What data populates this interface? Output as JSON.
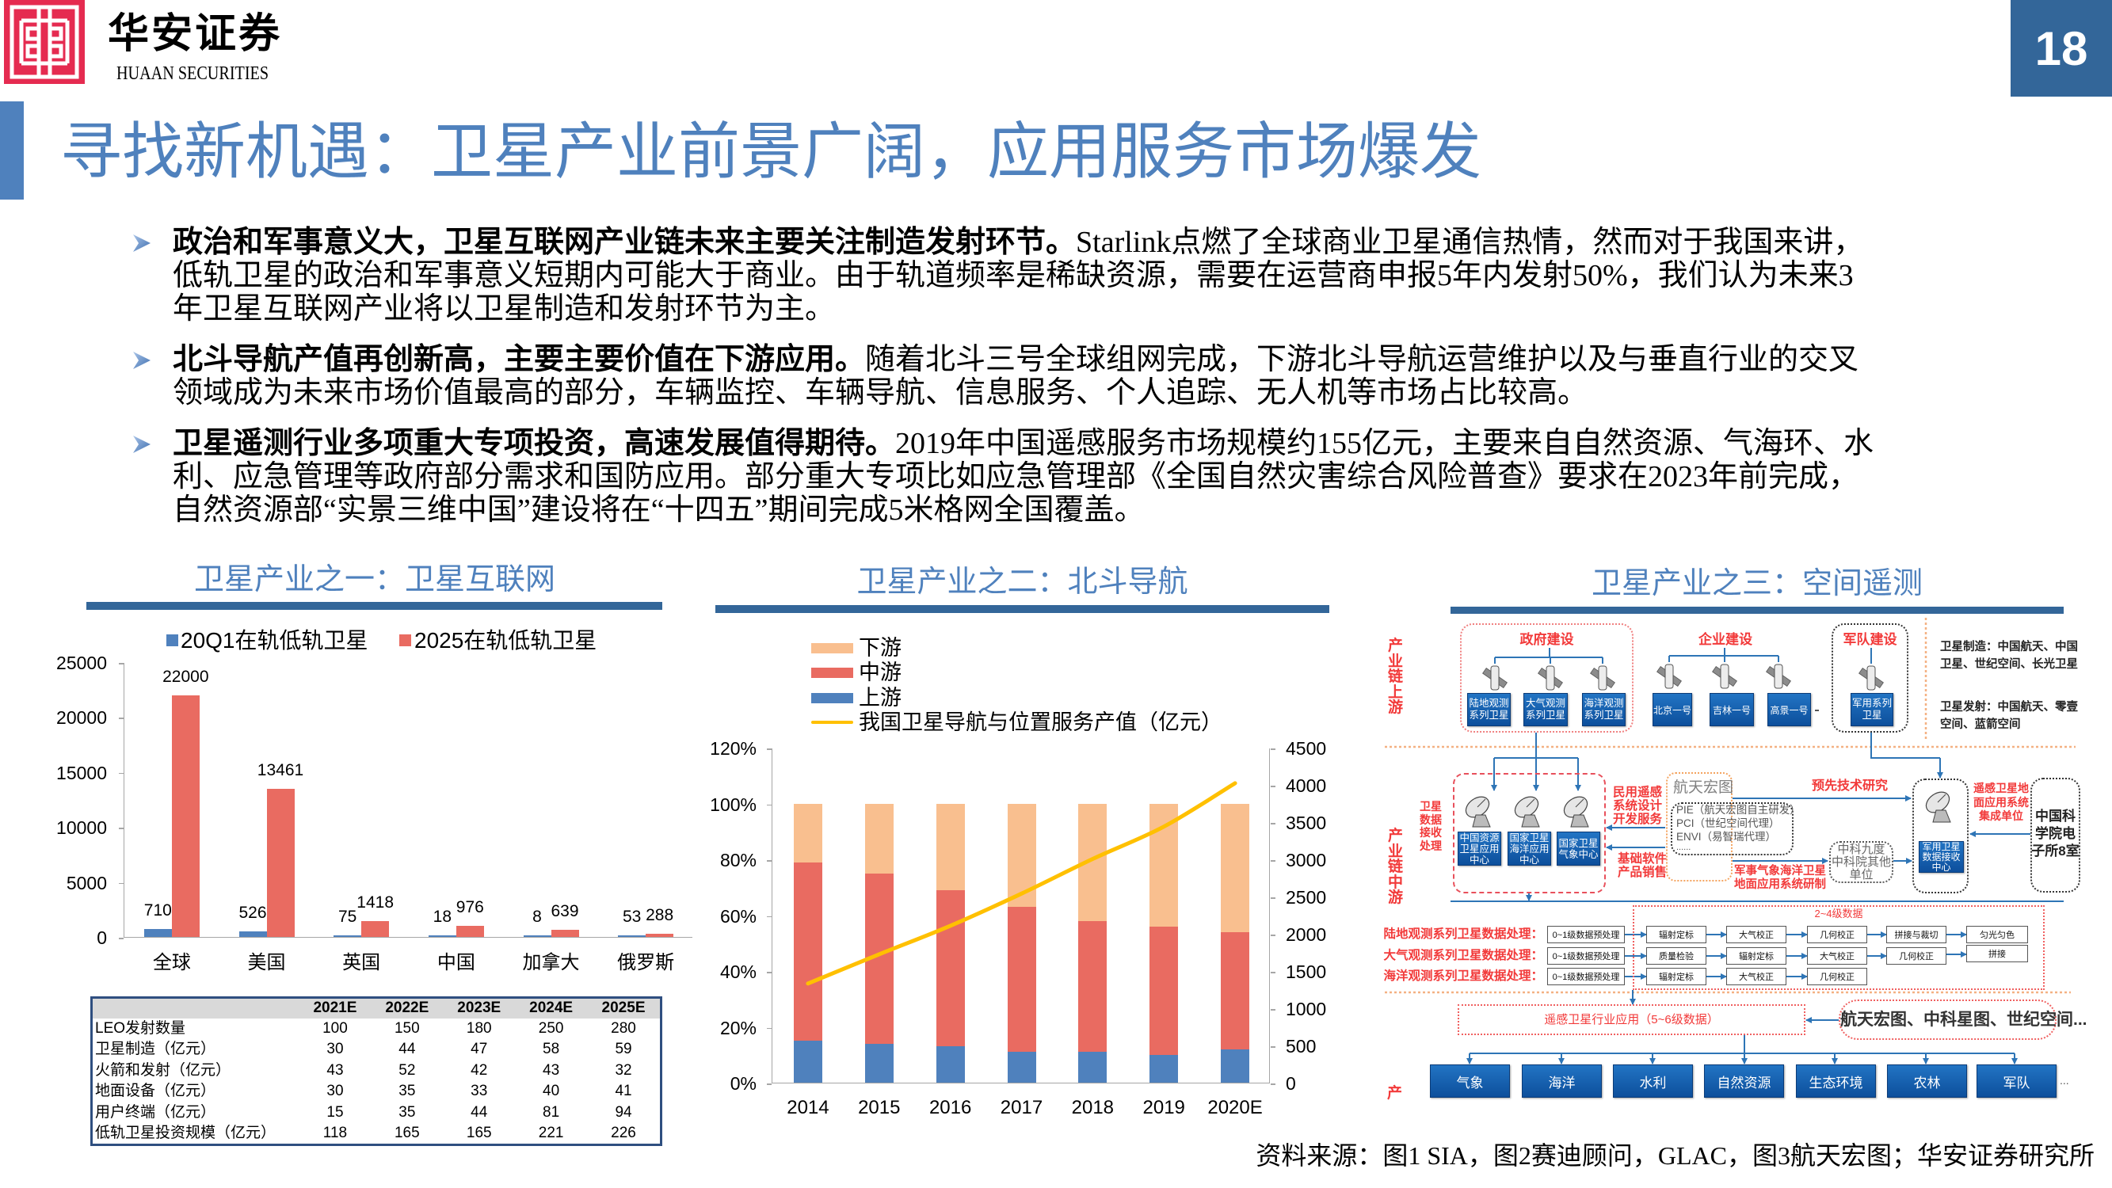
{
  "header": {
    "brand_cn": "华安证券",
    "brand_en": "HUAAN SECURITIES",
    "page_number": "18"
  },
  "title": "寻找新机遇：卫星产业前景广阔，应用服务市场爆发",
  "bullets": [
    {
      "lead": "政治和军事意义大，卫星互联网产业链未来主要关注制造发射环节。",
      "body": "Starlink点燃了全球商业卫星通信热情，然而对于我国来讲，低轨卫星的政治和军事意义短期内可能大于商业。由于轨道频率是稀缺资源，需要在运营商申报5年内发射50%，我们认为未来3年卫星互联网产业将以卫星制造和发射环节为主。"
    },
    {
      "lead": "北斗导航产值再创新高，主要主要价值在下游应用。",
      "body": "随着北斗三号全球组网完成，下游北斗导航运营维护以及与垂直行业的交叉领域成为未来市场价值最高的部分，车辆监控、车辆导航、信息服务、个人追踪、无人机等市场占比较高。"
    },
    {
      "lead": "卫星遥测行业多项重大专项投资，高速发展值得期待。",
      "body": "2019年中国遥感服务市场规模约155亿元，主要来自自然资源、气海环、水利、应急管理等政府部分需求和国防应用。部分重大专项比如应急管理部《全国自然灾害综合风险普查》要求在2023年前完成，自然资源部“实景三维中国”建设将在“十四五”期间完成5米格网全国覆盖。"
    }
  ],
  "panels": [
    {
      "title": "卫星产业之一：卫星互联网"
    },
    {
      "title": "卫星产业之二：北斗导航"
    },
    {
      "title": "卫星产业之三：空间遥测"
    }
  ],
  "chart_data": [
    {
      "type": "bar",
      "title": "卫星产业之一：卫星互联网",
      "categories": [
        "全球",
        "美国",
        "英国",
        "中国",
        "加拿大",
        "俄罗斯"
      ],
      "series": [
        {
          "name": "20Q1在轨低轨卫星",
          "values": [
            710,
            526,
            75,
            18,
            8,
            53
          ],
          "color": "#4f81bd"
        },
        {
          "name": "2025在轨低轨卫星",
          "values": [
            22000,
            13461,
            1418,
            976,
            639,
            288
          ],
          "color": "#e96b61"
        }
      ],
      "xlabel": "",
      "ylabel": "",
      "ylim": [
        0,
        25000
      ],
      "yticks": [
        25000,
        20000,
        15000,
        10000,
        5000,
        0
      ],
      "grid": false,
      "legend_position": "top",
      "data_labels": true
    },
    {
      "type": "bar",
      "stacked": true,
      "title": "卫星产业之二：北斗导航",
      "categories": [
        "2014",
        "2015",
        "2016",
        "2017",
        "2018",
        "2019",
        "2020E"
      ],
      "series": [
        {
          "name": "上游",
          "values": [
            15,
            14,
            13,
            11,
            11,
            10,
            12
          ],
          "color": "#4f81bd"
        },
        {
          "name": "中游",
          "values": [
            64,
            61,
            56,
            52,
            47,
            46,
            42
          ],
          "color": "#e96b61"
        },
        {
          "name": "下游",
          "values": [
            21,
            25,
            31,
            37,
            42,
            44,
            46
          ],
          "color": "#f9bf8f"
        }
      ],
      "line_series": {
        "name": "我国卫星导航与位置服务产值（亿元）",
        "values": [
          1343,
          1735,
          2118,
          2550,
          3016,
          3450,
          4033
        ],
        "color": "#ffc000",
        "axis": "right"
      },
      "ylim": [
        0,
        120
      ],
      "y2lim": [
        0,
        4500
      ],
      "yticks": [
        "120%",
        "100%",
        "80%",
        "60%",
        "40%",
        "20%",
        "0%"
      ],
      "y2ticks": [
        4500,
        4000,
        3500,
        3000,
        2500,
        2000,
        1500,
        1000,
        500,
        0
      ],
      "xlabel": "",
      "ylabel": "",
      "grid": false,
      "legend_position": "top-left"
    }
  ],
  "table": {
    "headers": [
      "",
      "2021E",
      "2022E",
      "2023E",
      "2024E",
      "2025E"
    ],
    "rows": [
      {
        "label": "LEO发射数量",
        "values": [
          "100",
          "150",
          "180",
          "250",
          "280"
        ]
      },
      {
        "label": "卫星制造（亿元）",
        "values": [
          "30",
          "44",
          "47",
          "58",
          "59"
        ]
      },
      {
        "label": "火箭和发射（亿元）",
        "values": [
          "43",
          "52",
          "42",
          "43",
          "32"
        ]
      },
      {
        "label": "地面设备（亿元）",
        "values": [
          "30",
          "35",
          "33",
          "40",
          "41"
        ]
      },
      {
        "label": "用户终端（亿元）",
        "values": [
          "15",
          "35",
          "44",
          "81",
          "94"
        ]
      },
      {
        "label": "低轨卫星投资规模（亿元）",
        "values": [
          "118",
          "165",
          "165",
          "221",
          "226"
        ]
      }
    ]
  },
  "diagram": {
    "stages": {
      "upstream": "产业链上游",
      "midstream": "产业链中游",
      "downstream": "产"
    },
    "upstream": {
      "gov_label": "政府建设",
      "gov_sats": [
        "陆地观测\n系列卫星",
        "大气观测\n系列卫星",
        "海洋观测\n系列卫星"
      ],
      "ent_label": "企业建设",
      "ent_sats": [
        "北京一号",
        "吉林一号",
        "高景一号"
      ],
      "mil_label": "军队建设",
      "mil_sat": "军用系列\n卫星",
      "notes": [
        "卫星制造：中国航天、中国卫星、世纪空间、长光卫星",
        "卫星发射：中国航天、零壹空间、蓝箭空间"
      ]
    },
    "midstream": {
      "receive_label": "卫星\n数据\n接收\n处理",
      "centers": [
        "中国资源\n卫星应用\n中心",
        "国家卫星\n海洋应用\n中心",
        "国家卫星\n气象中心"
      ],
      "civil_service": "民用遥感\n系统设计\n开发服务",
      "software_sales": "基础软件\n产品销售",
      "company": "航天宏图",
      "software": [
        "PIE（航天宏图自主研发）",
        "PCI（世纪空间代理）",
        "ENVI（易智瑞代理）",
        "......"
      ],
      "pre_research": "预先技术研究",
      "military_dev": "军事气象海洋卫星\n地面应用系统研制",
      "cas_units": "中科九度\n中科院其他\n单位",
      "mil_center": "军用卫星\n数据接收\n中心",
      "integrator_label": "遥感卫星地\n面应用系统\n集成单位",
      "cas_ie": "中国科\n学院电\n子所8室"
    },
    "processing": {
      "level_label": "2~4级数据",
      "rows": [
        {
          "label": "陆地观测系列卫星数据处理：",
          "steps": [
            "0~1级数据预处理",
            "辐射定标",
            "大气校正",
            "几何校正",
            "拼接与裁切",
            "匀光匀色"
          ]
        },
        {
          "label": "大气观测系列卫星数据处理：",
          "steps": [
            "0~1级数据预处理",
            "质量检验",
            "辐射定标",
            "大气校正",
            "几何校正",
            "拼接"
          ]
        },
        {
          "label": "海洋观测系列卫星数据处理：",
          "steps": [
            "0~1级数据预处理",
            "辐射定标",
            "大气校正",
            "几何校正"
          ]
        }
      ]
    },
    "downstream": {
      "application": "遥感卫星行业应用（5~6级数据）",
      "companies": "航天宏图、中科星图、世纪空间...",
      "sectors": [
        "气象",
        "海洋",
        "水利",
        "自然资源",
        "生态环境",
        "农林",
        "军队"
      ],
      "more": "..."
    }
  },
  "source": "资料来源：图1 SIA，图2赛迪顾问，GLAC，图3航天宏图；华安证券研究所"
}
